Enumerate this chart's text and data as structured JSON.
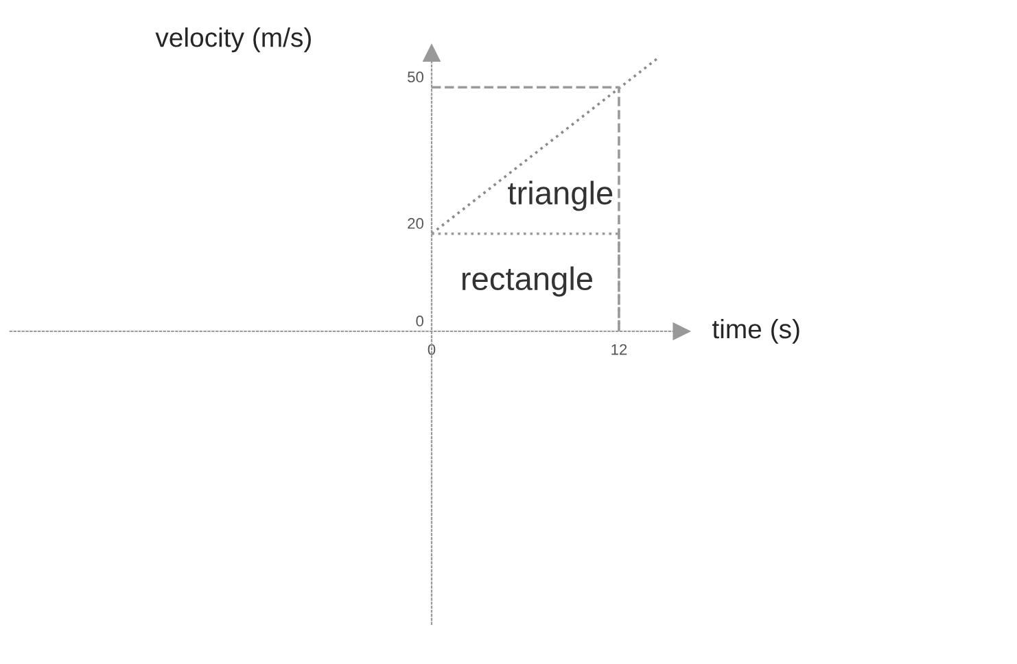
{
  "chart_data": {
    "type": "line",
    "xlabel": "time (s)",
    "ylabel": "velocity (m/s)",
    "xlim": [
      -27,
      16
    ],
    "ylim": [
      -60,
      57
    ],
    "xticks": [
      0,
      12
    ],
    "yticks": [
      0,
      20,
      50
    ],
    "marker": "none",
    "series": [
      {
        "color": "#8a8a8a",
        "x": [
          0,
          14.5
        ],
        "values": [
          20,
          56
        ],
        "line_style": "dotted"
      },
      {
        "color": "#9a9a9a",
        "x": [
          0,
          12,
          12
        ],
        "values": [
          50,
          50,
          0
        ],
        "line_style": "dashed"
      },
      {
        "color": "#9a9a9a",
        "x": [
          0,
          12,
          12
        ],
        "values": [
          20,
          20,
          0
        ],
        "line_style": "dotted"
      }
    ],
    "annotations": [
      "triangle",
      "rectangle"
    ]
  }
}
